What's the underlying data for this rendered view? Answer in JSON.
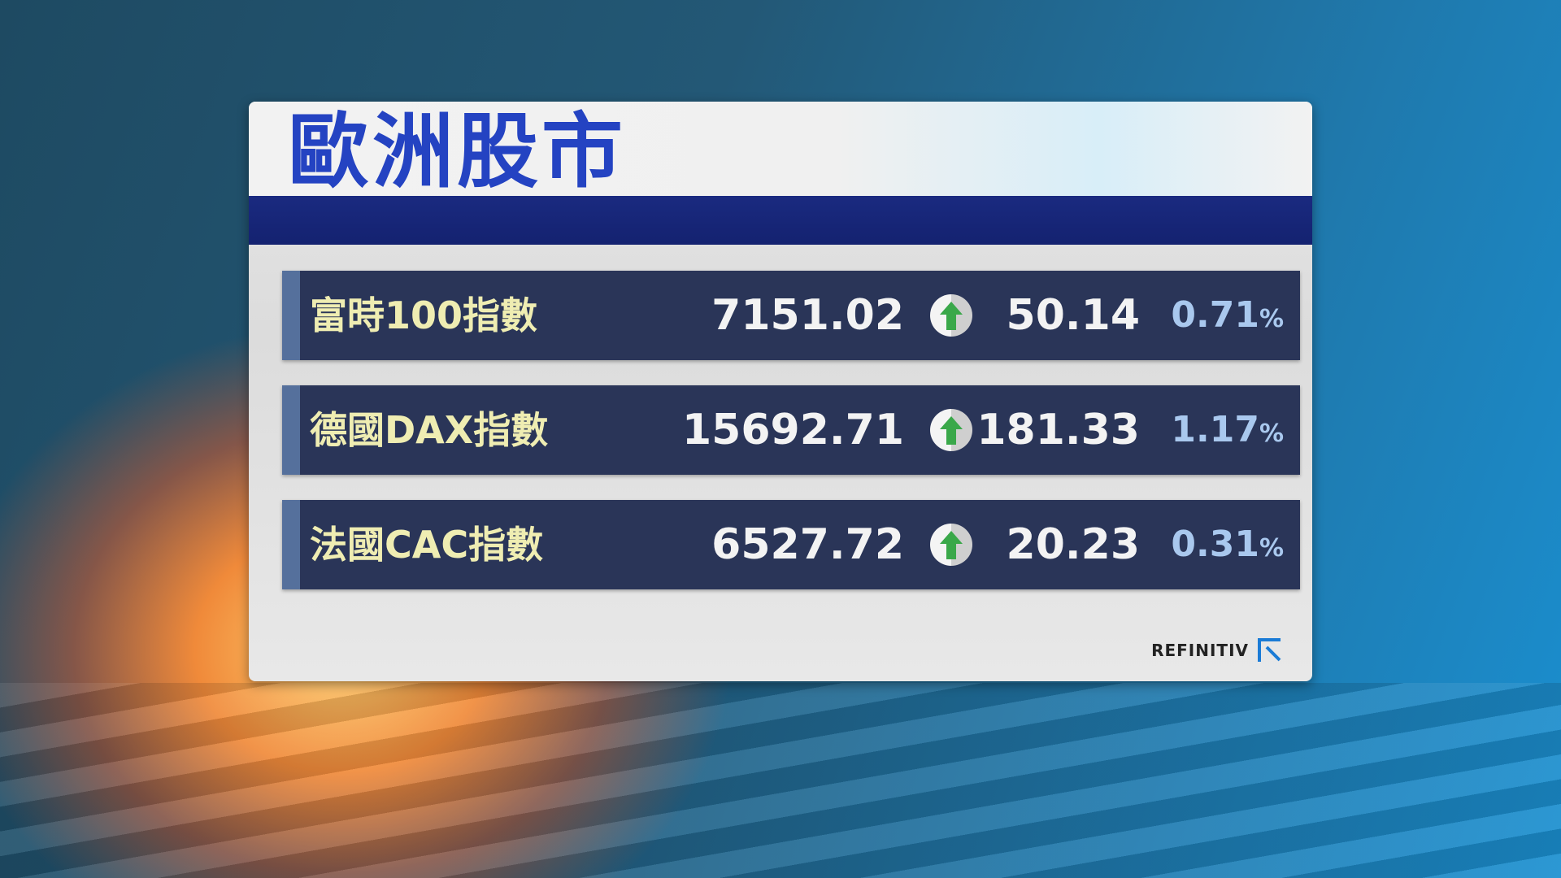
{
  "title": "歐洲股市",
  "rows": [
    {
      "name": "富時100指數",
      "value": "7151.02",
      "direction": "up",
      "change": "50.14",
      "percent": "0.71",
      "percent_sign": "%"
    },
    {
      "name": "德國DAX指數",
      "value": "15692.71",
      "direction": "up",
      "change": "181.33",
      "percent": "1.17",
      "percent_sign": "%"
    },
    {
      "name": "法國CAC指數",
      "value": "6527.72",
      "direction": "up",
      "change": "20.23",
      "percent": "0.31",
      "percent_sign": "%"
    }
  ],
  "source_logo": "REFINITIV",
  "colors": {
    "title": "#2443c2",
    "up_arrow": "#3aa84a",
    "row_bg": "#2a3558",
    "name_text": "#efedb2",
    "percent_text": "#a9c8ee"
  },
  "icons": {
    "change": "arrow-up-circle-icon",
    "logo": "refinitiv-logo-icon"
  }
}
